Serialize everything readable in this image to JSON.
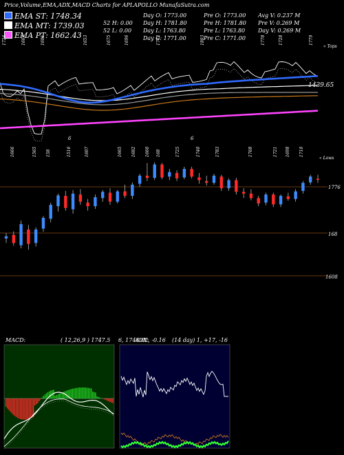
{
  "header": {
    "caption": "Price,Volume,EMA,ADX,MACD Charts for APLAPOLLO MunafaSutra.com",
    "legend": [
      {
        "label": "EMA ST: 1748.34",
        "color": "#2f6bff"
      },
      {
        "label": "EMA MT: 1739.03",
        "color": "#ffffff"
      },
      {
        "label": "EMA PT: 1662.43",
        "color": "#ff55ff"
      }
    ],
    "stats": [
      [
        "Day O: 1773.00",
        "Pre O: 1773.00",
        "Avg V: 0.237 M"
      ],
      [
        "52 H: 0.00",
        "Day H: 1781.80",
        "Pre H: 1781.80",
        "Pre V: 0.269 M"
      ],
      [
        "52 L: 0.00",
        "Day L: 1763.80",
        "Pre L: 1763.80",
        "Day V: 0.269 M"
      ],
      [
        "Day C: 1771.00",
        "Pre C: 1771.00"
      ]
    ]
  },
  "panel1": {
    "topright": "« Tops",
    "last_value": "1439.65",
    "tops": [
      "1724",
      "1669",
      "1601",
      "1653",
      "1675",
      "1696",
      "1742",
      "1803",
      "1778",
      "1728",
      "1779"
    ],
    "markers": [
      "6",
      "6"
    ]
  },
  "panel2": {
    "topright": "« Lows",
    "lows": [
      "1666",
      "1565",
      "158",
      "1516",
      "1607",
      "1665",
      "1682",
      "1660",
      "168",
      "1725",
      "1740",
      "1783",
      "1768",
      "1721",
      "1698",
      "1710"
    ],
    "levels": [
      "1776",
      "168",
      "1608"
    ]
  },
  "macd": {
    "title": "MACD:",
    "params": "( 12,26,9 ) 1747.5",
    "values": "6, 1748.02, -0.16"
  },
  "adx": {
    "title": "ADX:",
    "params": "(14 day) 1, +17, -16"
  },
  "chart_data": {
    "type": "candlestick",
    "title": "Price,Volume,EMA,ADX,MACD Charts for APLAPOLLO",
    "price_levels": [
      1776,
      168,
      1608
    ],
    "candles": [
      {
        "o": 1640,
        "h": 1652,
        "l": 1630,
        "c": 1645,
        "bull": true
      },
      {
        "o": 1648,
        "h": 1656,
        "l": 1624,
        "c": 1630,
        "bull": false
      },
      {
        "o": 1625,
        "h": 1680,
        "l": 1618,
        "c": 1672,
        "bull": true
      },
      {
        "o": 1660,
        "h": 1670,
        "l": 1615,
        "c": 1628,
        "bull": false
      },
      {
        "o": 1630,
        "h": 1665,
        "l": 1622,
        "c": 1660,
        "bull": true
      },
      {
        "o": 1662,
        "h": 1690,
        "l": 1655,
        "c": 1686,
        "bull": true
      },
      {
        "o": 1684,
        "h": 1720,
        "l": 1676,
        "c": 1715,
        "bull": true
      },
      {
        "o": 1712,
        "h": 1740,
        "l": 1700,
        "c": 1736,
        "bull": true
      },
      {
        "o": 1735,
        "h": 1746,
        "l": 1702,
        "c": 1708,
        "bull": false
      },
      {
        "o": 1705,
        "h": 1748,
        "l": 1695,
        "c": 1740,
        "bull": true
      },
      {
        "o": 1738,
        "h": 1750,
        "l": 1715,
        "c": 1722,
        "bull": false
      },
      {
        "o": 1720,
        "h": 1728,
        "l": 1702,
        "c": 1712,
        "bull": false
      },
      {
        "o": 1712,
        "h": 1738,
        "l": 1706,
        "c": 1732,
        "bull": true
      },
      {
        "o": 1730,
        "h": 1748,
        "l": 1722,
        "c": 1744,
        "bull": true
      },
      {
        "o": 1742,
        "h": 1752,
        "l": 1715,
        "c": 1722,
        "bull": false
      },
      {
        "o": 1722,
        "h": 1748,
        "l": 1718,
        "c": 1745,
        "bull": true
      },
      {
        "o": 1745,
        "h": 1760,
        "l": 1730,
        "c": 1735,
        "bull": false
      },
      {
        "o": 1735,
        "h": 1765,
        "l": 1728,
        "c": 1760,
        "bull": true
      },
      {
        "o": 1762,
        "h": 1784,
        "l": 1755,
        "c": 1780,
        "bull": true
      },
      {
        "o": 1780,
        "h": 1808,
        "l": 1768,
        "c": 1775,
        "bull": false
      },
      {
        "o": 1775,
        "h": 1810,
        "l": 1770,
        "c": 1805,
        "bull": true
      },
      {
        "o": 1805,
        "h": 1808,
        "l": 1772,
        "c": 1776,
        "bull": false
      },
      {
        "o": 1778,
        "h": 1795,
        "l": 1770,
        "c": 1788,
        "bull": true
      },
      {
        "o": 1786,
        "h": 1792,
        "l": 1768,
        "c": 1774,
        "bull": false
      },
      {
        "o": 1776,
        "h": 1800,
        "l": 1772,
        "c": 1795,
        "bull": true
      },
      {
        "o": 1795,
        "h": 1800,
        "l": 1774,
        "c": 1778,
        "bull": false
      },
      {
        "o": 1776,
        "h": 1786,
        "l": 1762,
        "c": 1770,
        "bull": false
      },
      {
        "o": 1768,
        "h": 1780,
        "l": 1758,
        "c": 1764,
        "bull": false
      },
      {
        "o": 1764,
        "h": 1784,
        "l": 1760,
        "c": 1780,
        "bull": true
      },
      {
        "o": 1778,
        "h": 1782,
        "l": 1746,
        "c": 1752,
        "bull": false
      },
      {
        "o": 1752,
        "h": 1774,
        "l": 1746,
        "c": 1770,
        "bull": true
      },
      {
        "o": 1770,
        "h": 1775,
        "l": 1738,
        "c": 1744,
        "bull": false
      },
      {
        "o": 1744,
        "h": 1752,
        "l": 1730,
        "c": 1740,
        "bull": false
      },
      {
        "o": 1740,
        "h": 1750,
        "l": 1725,
        "c": 1730,
        "bull": false
      },
      {
        "o": 1730,
        "h": 1735,
        "l": 1712,
        "c": 1718,
        "bull": false
      },
      {
        "o": 1720,
        "h": 1742,
        "l": 1714,
        "c": 1738,
        "bull": true
      },
      {
        "o": 1738,
        "h": 1742,
        "l": 1710,
        "c": 1716,
        "bull": false
      },
      {
        "o": 1716,
        "h": 1738,
        "l": 1710,
        "c": 1735,
        "bull": true
      },
      {
        "o": 1734,
        "h": 1742,
        "l": 1724,
        "c": 1728,
        "bull": false
      },
      {
        "o": 1728,
        "h": 1750,
        "l": 1722,
        "c": 1745,
        "bull": true
      },
      {
        "o": 1746,
        "h": 1768,
        "l": 1740,
        "c": 1764,
        "bull": true
      },
      {
        "o": 1765,
        "h": 1782,
        "l": 1760,
        "c": 1778,
        "bull": true
      },
      {
        "o": 1773,
        "h": 1782,
        "l": 1764,
        "c": 1771,
        "bull": false
      }
    ],
    "ema": [
      {
        "name": "EMA ST",
        "last": 1748.34
      },
      {
        "name": "EMA MT",
        "last": 1739.03
      },
      {
        "name": "EMA PT",
        "last": 1662.43
      }
    ]
  }
}
